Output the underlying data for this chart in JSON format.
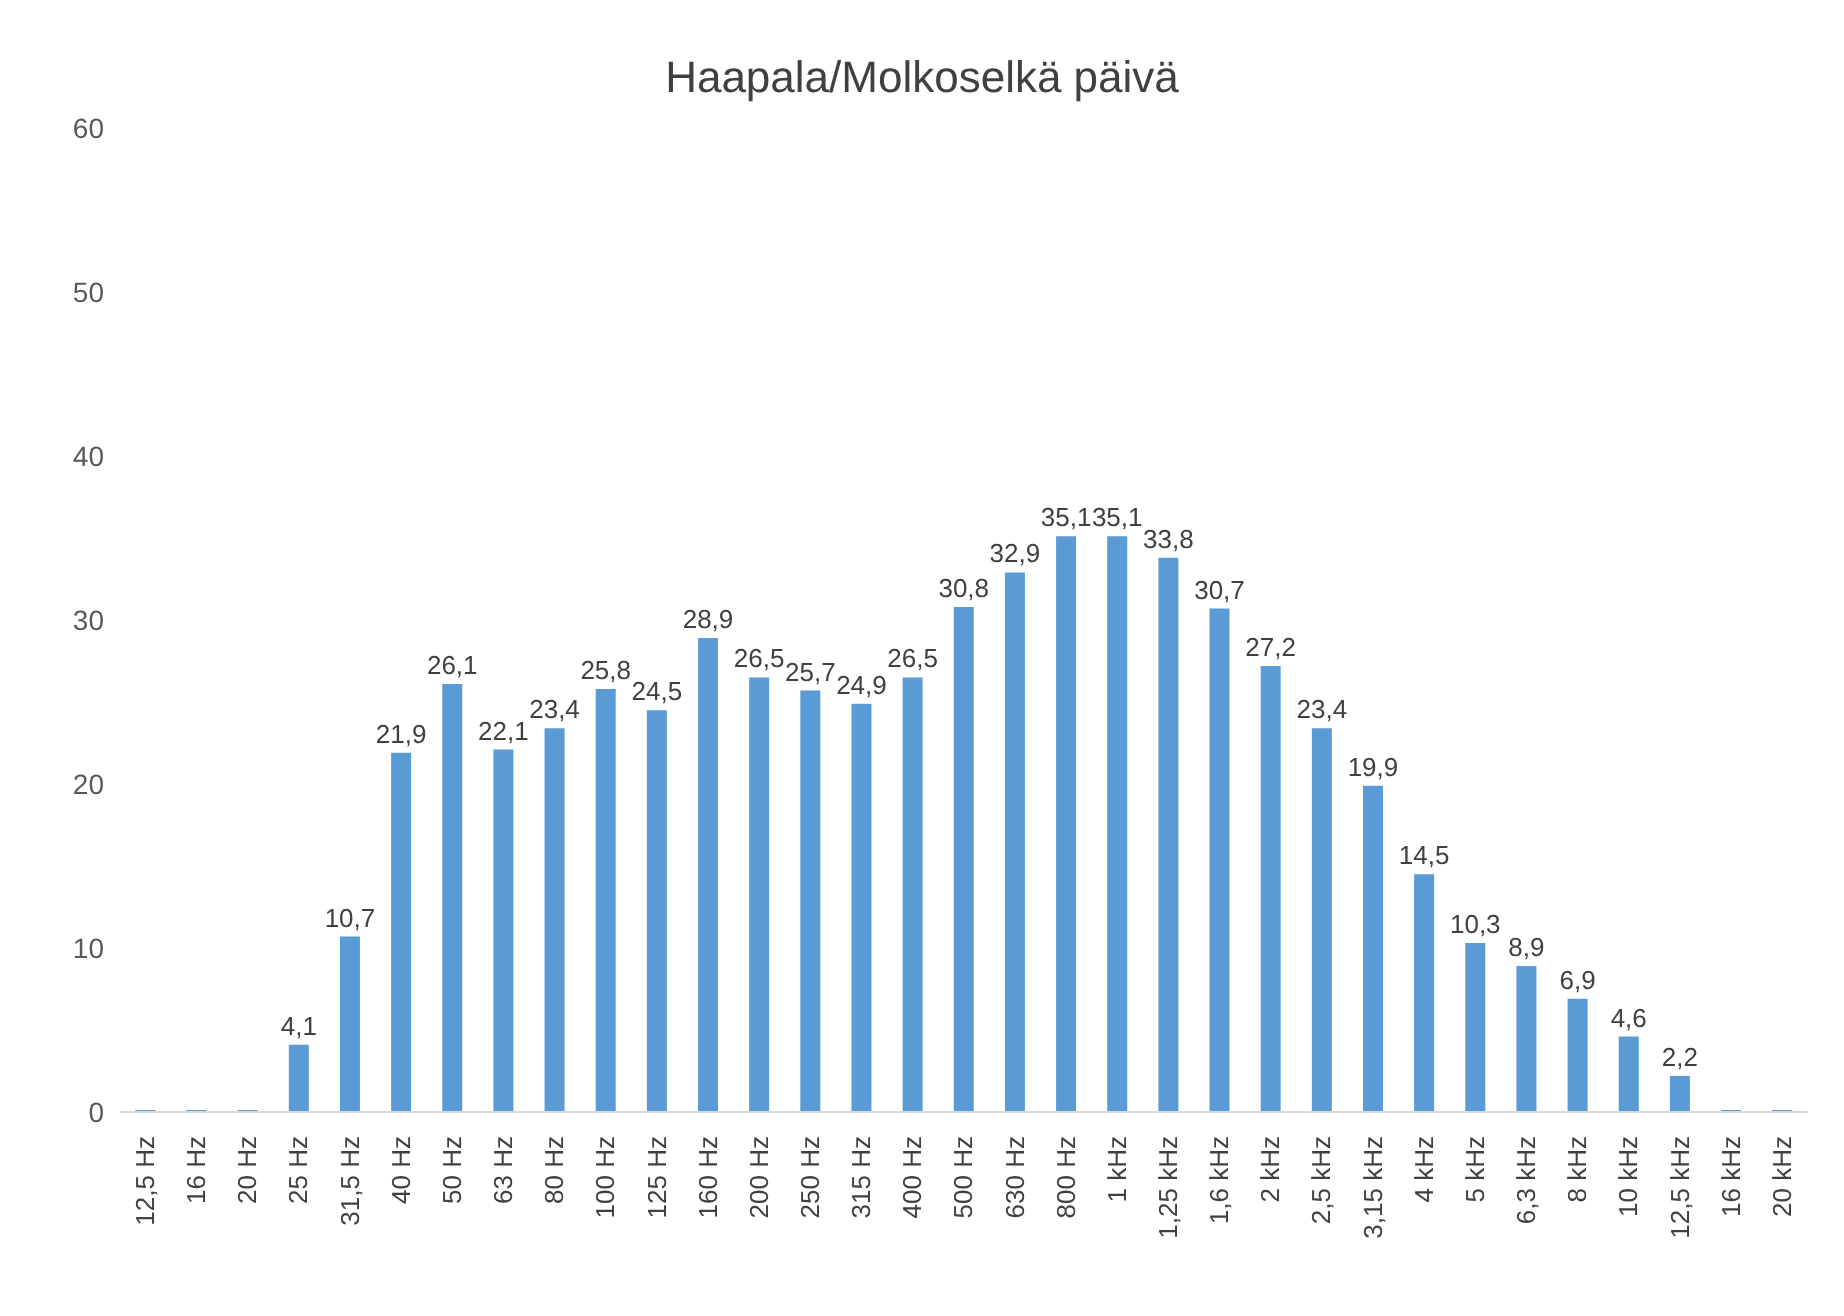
{
  "chart_data": {
    "type": "bar",
    "title": "Haapala/Molkoselkä päivä",
    "categories": [
      "12,5 Hz",
      "16 Hz",
      "20 Hz",
      "25 Hz",
      "31,5 Hz",
      "40 Hz",
      "50 Hz",
      "63 Hz",
      "80 Hz",
      "100 Hz",
      "125 Hz",
      "160 Hz",
      "200 Hz",
      "250 Hz",
      "315 Hz",
      "400 Hz",
      "500 Hz",
      "630 Hz",
      "800 Hz",
      "1 kHz",
      "1,25 kHz",
      "1,6 kHz",
      "2 kHz",
      "2,5 kHz",
      "3,15 kHz",
      "4 kHz",
      "5 kHz",
      "6,3 kHz",
      "8 kHz",
      "10 kHz",
      "12,5 kHz",
      "16 kHz",
      "20 kHz"
    ],
    "values": [
      0,
      0,
      0,
      4.1,
      10.7,
      21.9,
      26.1,
      22.1,
      23.4,
      25.8,
      24.5,
      28.9,
      26.5,
      25.7,
      24.9,
      26.5,
      30.8,
      32.9,
      35.1,
      35.1,
      33.8,
      30.7,
      27.2,
      23.4,
      19.9,
      14.5,
      10.3,
      8.9,
      6.9,
      4.6,
      2.2,
      0,
      0
    ],
    "value_labels": [
      null,
      null,
      null,
      "4,1",
      "10,7",
      "21,9",
      "26,1",
      "22,1",
      "23,4",
      "25,8",
      "24,5",
      "28,9",
      "26,5",
      "25,7",
      "24,9",
      "26,5",
      "30,8",
      "32,9",
      "35,1",
      "35,1",
      "33,8",
      "30,7",
      "27,2",
      "23,4",
      "19,9",
      "14,5",
      "10,3",
      "8,9",
      "6,9",
      "4,6",
      "2,2",
      null,
      null
    ],
    "color": "#5b9bd5",
    "ylim": [
      0,
      60
    ],
    "yticks": [
      0,
      10,
      20,
      30,
      40,
      50,
      60
    ],
    "grid": false,
    "legend": false
  }
}
